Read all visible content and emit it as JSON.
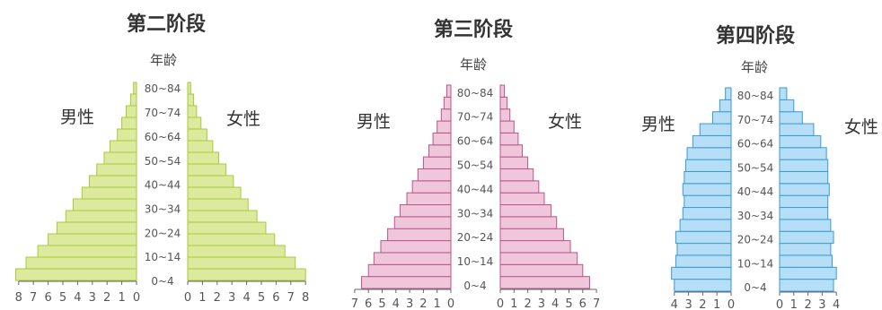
{
  "chart_data": [
    {
      "type": "bar",
      "title": "第二阶段",
      "age_axis_label": "年龄",
      "male_label": "男性",
      "female_label": "女性",
      "age_groups": [
        "0~4",
        "5~9",
        "10~14",
        "15~19",
        "20~24",
        "25~29",
        "30~34",
        "35~39",
        "40~44",
        "45~49",
        "50~54",
        "55~59",
        "60~64",
        "65~69",
        "70~74",
        "75~79",
        "80~84"
      ],
      "age_tick_labels": [
        "0~4",
        "10~14",
        "20~24",
        "30~34",
        "40~44",
        "50~54",
        "60~64",
        "70~74",
        "80~84"
      ],
      "series": [
        {
          "name": "男性",
          "values": [
            8.2,
            7.5,
            6.7,
            6.0,
            5.4,
            4.8,
            4.3,
            3.7,
            3.2,
            2.7,
            2.2,
            1.8,
            1.3,
            1.0,
            0.7,
            0.4,
            0.2
          ]
        },
        {
          "name": "女性",
          "values": [
            8.0,
            7.3,
            6.6,
            5.9,
            5.3,
            4.7,
            4.1,
            3.6,
            3.1,
            2.6,
            2.1,
            1.7,
            1.3,
            0.9,
            0.6,
            0.4,
            0.2
          ]
        }
      ],
      "male_ticks": [
        "8",
        "7",
        "6",
        "5",
        "4",
        "3",
        "2",
        "1",
        "0"
      ],
      "female_ticks": [
        "0",
        "1",
        "2",
        "3",
        "4",
        "5",
        "6",
        "7",
        "8"
      ],
      "xlim": [
        0,
        8
      ],
      "colors": {
        "fill": "#dcea9e",
        "stroke": "#a8c93c"
      }
    },
    {
      "type": "bar",
      "title": "第三阶段",
      "age_axis_label": "年龄",
      "male_label": "男性",
      "female_label": "女性",
      "age_groups": [
        "0~4",
        "5~9",
        "10~14",
        "15~19",
        "20~24",
        "25~29",
        "30~34",
        "35~39",
        "40~44",
        "45~49",
        "50~54",
        "55~59",
        "60~64",
        "65~69",
        "70~74",
        "75~79",
        "80~84"
      ],
      "age_tick_labels": [
        "0~4",
        "10~14",
        "20~24",
        "30~34",
        "40~44",
        "50~54",
        "60~64",
        "70~74",
        "80~84"
      ],
      "series": [
        {
          "name": "男性",
          "values": [
            6.5,
            6.0,
            5.6,
            5.1,
            4.6,
            4.1,
            3.7,
            3.2,
            2.8,
            2.4,
            2.0,
            1.6,
            1.3,
            1.0,
            0.7,
            0.5,
            0.3
          ]
        },
        {
          "name": "女性",
          "values": [
            6.5,
            6.0,
            5.6,
            5.1,
            4.6,
            4.1,
            3.7,
            3.2,
            2.8,
            2.4,
            2.0,
            1.6,
            1.3,
            1.0,
            0.7,
            0.5,
            0.3
          ]
        }
      ],
      "male_ticks": [
        "7",
        "6",
        "5",
        "4",
        "3",
        "2",
        "1",
        "0"
      ],
      "female_ticks": [
        "0",
        "1",
        "2",
        "3",
        "4",
        "5",
        "6",
        "7"
      ],
      "xlim": [
        0,
        7
      ],
      "colors": {
        "fill": "#efc6da",
        "stroke": "#b8568a"
      }
    },
    {
      "type": "bar",
      "title": "第四阶段",
      "age_axis_label": "年龄",
      "male_label": "男性",
      "female_label": "女性",
      "age_groups": [
        "0~4",
        "5~9",
        "10~14",
        "15~19",
        "20~24",
        "25~29",
        "30~34",
        "35~39",
        "40~44",
        "45~49",
        "50~54",
        "55~59",
        "60~64",
        "65~69",
        "70~74",
        "75~79",
        "80~84"
      ],
      "age_tick_labels": [
        "0~4",
        "10~14",
        "20~24",
        "30~34",
        "40~44",
        "50~54",
        "60~64",
        "70~74",
        "80~84"
      ],
      "series": [
        {
          "name": "男性",
          "values": [
            4.0,
            4.2,
            3.9,
            3.8,
            3.9,
            3.6,
            3.4,
            3.3,
            3.4,
            3.3,
            3.2,
            3.1,
            2.7,
            2.2,
            1.3,
            0.8,
            0.4
          ]
        },
        {
          "name": "女性",
          "values": [
            3.8,
            4.0,
            3.7,
            3.6,
            3.8,
            3.6,
            3.4,
            3.4,
            3.5,
            3.4,
            3.4,
            3.3,
            2.9,
            2.4,
            1.6,
            1.0,
            0.5
          ]
        }
      ],
      "male_ticks": [
        "4",
        "3",
        "2",
        "1",
        "0"
      ],
      "female_ticks": [
        "0",
        "1",
        "2",
        "3",
        "4"
      ],
      "xlim": [
        0,
        4
      ],
      "colors": {
        "fill": "#b6def6",
        "stroke": "#3a9ad6"
      }
    }
  ]
}
